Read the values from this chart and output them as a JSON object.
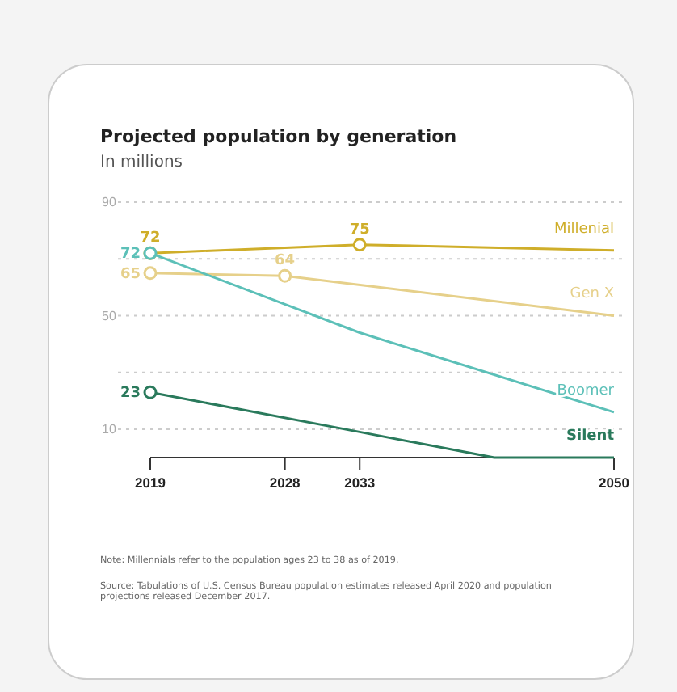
{
  "chart_data": {
    "type": "line",
    "title": "Projected population by generation",
    "subtitle": "In millions",
    "xlim": [
      2019,
      2050
    ],
    "xticks": [
      2019,
      2028,
      2033,
      2050
    ],
    "ylim": [
      0,
      90
    ],
    "yticks": [
      {
        "value": 10,
        "label": "10"
      },
      {
        "value": 30,
        "label": null
      },
      {
        "value": 50,
        "label": "50"
      },
      {
        "value": 70,
        "label": null
      },
      {
        "value": 90,
        "label": "90"
      }
    ],
    "grid": "y",
    "line_style": "solid",
    "series": [
      {
        "name": "Millenial",
        "color": "#cfae2a",
        "x": [
          2019,
          2033,
          2050
        ],
        "values": [
          72,
          75,
          73
        ],
        "value_labels": [
          "72",
          "75",
          null
        ]
      },
      {
        "name": "Gen X",
        "color": "#e6d08a",
        "x": [
          2019,
          2028,
          2050
        ],
        "values": [
          65,
          64,
          50
        ],
        "value_labels": [
          "65",
          "64",
          null
        ]
      },
      {
        "name": "Boomer",
        "color": "#5cc0b8",
        "x": [
          2019,
          2028,
          2033,
          2050
        ],
        "values": [
          72,
          54,
          44,
          16
        ],
        "value_labels": [
          "72",
          null,
          null,
          null
        ]
      },
      {
        "name": "Silent",
        "color": "#2a7a5c",
        "x": [
          2019,
          2033,
          2042,
          2050
        ],
        "values": [
          23,
          9,
          0,
          0
        ],
        "value_labels": [
          "23",
          null,
          null,
          null
        ]
      }
    ],
    "annotations": [
      "Note: Millennials refer to the population ages 23 to 38 as of 2019.",
      "Source: Tabulations of U.S. Census Bureau population estimates released April 2020 and population projections released December 2017."
    ]
  }
}
